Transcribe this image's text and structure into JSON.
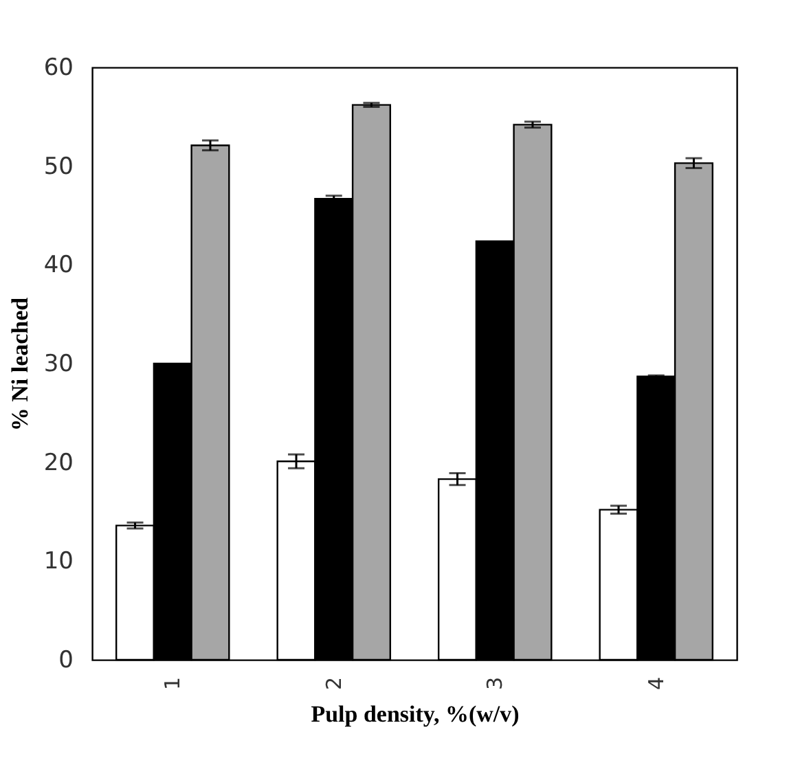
{
  "chart_data": {
    "type": "bar",
    "xlabel": "Pulp density, %(w/v)",
    "ylabel": "% Ni leached",
    "categories": [
      "1",
      "2",
      "3",
      "4"
    ],
    "series": [
      {
        "color": "#ffffff",
        "values": [
          13.6,
          20.1,
          18.3,
          15.2
        ],
        "errors": [
          0.3,
          0.7,
          0.6,
          0.4
        ]
      },
      {
        "color": "#000000",
        "values": [
          30,
          46.7,
          42.4,
          28.7
        ],
        "errors": [
          null,
          0.3,
          null,
          0.1
        ]
      },
      {
        "color": "#a6a6a6",
        "values": [
          52.1,
          56.2,
          54.2,
          50.3
        ],
        "errors": [
          0.5,
          0.2,
          0.3,
          0.5
        ]
      }
    ],
    "ylim": [
      0,
      60
    ],
    "yticks": [
      0,
      10,
      20,
      30,
      40,
      50,
      60
    ],
    "grid": false,
    "legend": false
  }
}
